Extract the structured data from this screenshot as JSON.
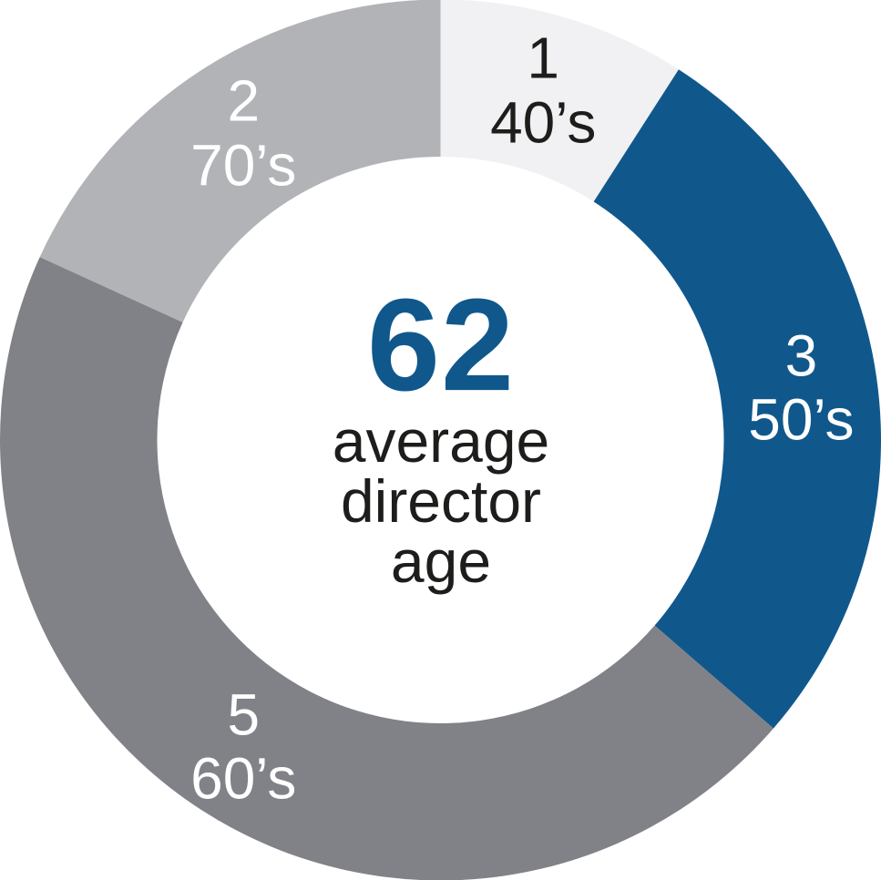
{
  "chart_data": {
    "type": "pie",
    "variant": "donut",
    "title": "average director age",
    "categories": [
      "40’s",
      "50’s",
      "60’s",
      "70’s"
    ],
    "values": [
      1,
      3,
      5,
      2
    ],
    "total": 11,
    "segments": [
      {
        "id": "40s",
        "category": "40’s",
        "count": "1",
        "value": 1,
        "color": "#f1f1f3",
        "label_color": "#1d1d1b"
      },
      {
        "id": "50s",
        "category": "50’s",
        "count": "3",
        "value": 3,
        "color": "#10588c",
        "label_color": "#ffffff"
      },
      {
        "id": "60s",
        "category": "60’s",
        "count": "5",
        "value": 5,
        "color": "#818287",
        "label_color": "#ffffff"
      },
      {
        "id": "70s",
        "category": "70’s",
        "count": "2",
        "value": 2,
        "color": "#b2b3b7",
        "label_color": "#ffffff"
      }
    ],
    "center": {
      "value": "62",
      "line1": "average",
      "line2": "director",
      "line3": "age",
      "value_color": "#10588c",
      "text_color": "#1d1d1b"
    },
    "layout": {
      "start_angle_deg": 0,
      "direction": "clockwise",
      "legend": "none",
      "labels_inside_ring": true
    }
  }
}
